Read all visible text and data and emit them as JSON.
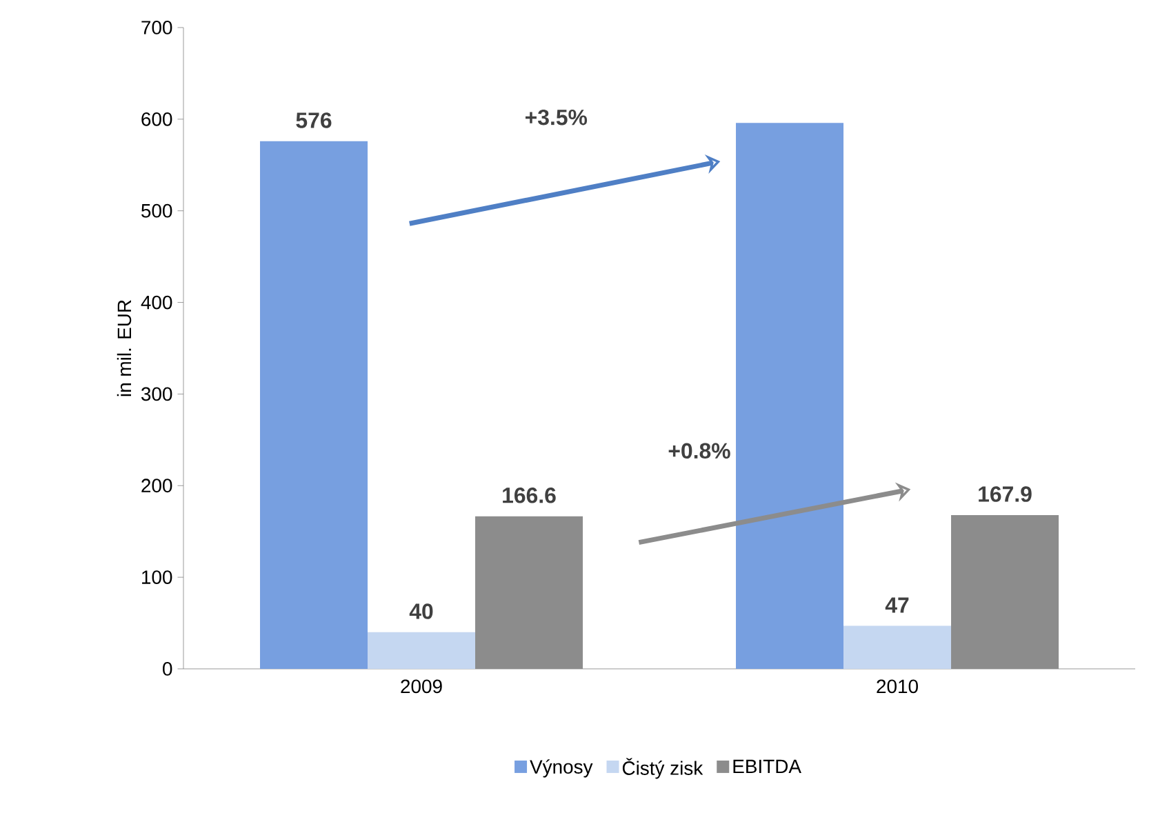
{
  "chart_data": {
    "type": "bar",
    "ylabel": "in mil. EUR",
    "categories": [
      "2009",
      "2010"
    ],
    "series": [
      {
        "name": "Výnosy",
        "color": "#779fe0",
        "values": [
          576,
          596
        ],
        "value_labels": [
          "576",
          null
        ]
      },
      {
        "name": "Čistý zisk",
        "color": "#c5d7f1",
        "values": [
          40,
          47
        ],
        "value_labels": [
          "40",
          "47"
        ]
      },
      {
        "name": "EBITDA",
        "color": "#8c8c8c",
        "values": [
          166.6,
          167.9
        ],
        "value_labels": [
          "166.6",
          "167.9"
        ]
      }
    ],
    "ylim": [
      0,
      700
    ],
    "yticks": [
      0,
      100,
      200,
      300,
      400,
      500,
      600,
      700
    ],
    "grid": false,
    "legend": "bottom",
    "annotations": [
      "+3.5%",
      "+0.8%"
    ]
  }
}
